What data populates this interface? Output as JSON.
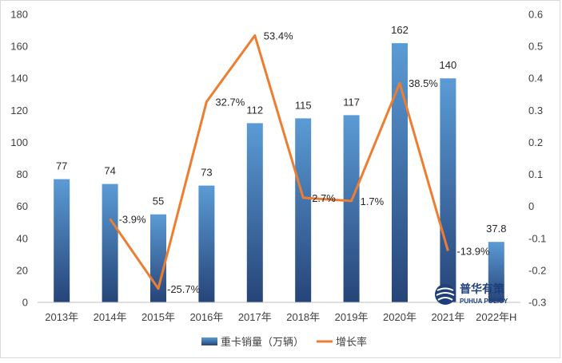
{
  "chart_data": {
    "type": "bar",
    "categories": [
      "2013年",
      "2014年",
      "2015年",
      "2016年",
      "2017年",
      "2018年",
      "2019年",
      "2020年",
      "2021年",
      "2022年H"
    ],
    "series": [
      {
        "name": "重卡销量（万辆）",
        "type": "bar",
        "axis": "left",
        "values": [
          77,
          74,
          55,
          73,
          112,
          115,
          117,
          162,
          140,
          37.8
        ],
        "labels": [
          "77",
          "74",
          "55",
          "73",
          "112",
          "115",
          "117",
          "162",
          "140",
          "37.8"
        ],
        "color_top": "#5b9bd5",
        "color_bottom": "#264478"
      },
      {
        "name": "增长率",
        "type": "line",
        "axis": "right",
        "values": [
          null,
          -0.039,
          -0.257,
          0.327,
          0.534,
          0.027,
          0.017,
          0.385,
          -0.139,
          null
        ],
        "labels": [
          "",
          "-3.9%",
          "-25.7%",
          "32.7%",
          "53.4%",
          "2.7%",
          "1.7%",
          "38.5%",
          "-13.9%",
          ""
        ],
        "color": "#ed7d31"
      }
    ],
    "y_left": {
      "min": 0,
      "max": 180,
      "step": 20,
      "ticks": [
        "0",
        "20",
        "40",
        "60",
        "80",
        "100",
        "120",
        "140",
        "160",
        "180"
      ]
    },
    "y_right": {
      "min": -0.3,
      "max": 0.6,
      "step": 0.1,
      "ticks": [
        "-0.3",
        "-0.2",
        "-0.1",
        "0",
        "0.1",
        "0.2",
        "0.3",
        "0.4",
        "0.5",
        "0.6"
      ]
    },
    "legend": {
      "position": "bottom",
      "items": [
        "重卡销量（万辆）",
        "增长率"
      ]
    },
    "grid": false
  },
  "watermark": {
    "main": "普华有策",
    "sub": "PUHUA POLICY"
  }
}
